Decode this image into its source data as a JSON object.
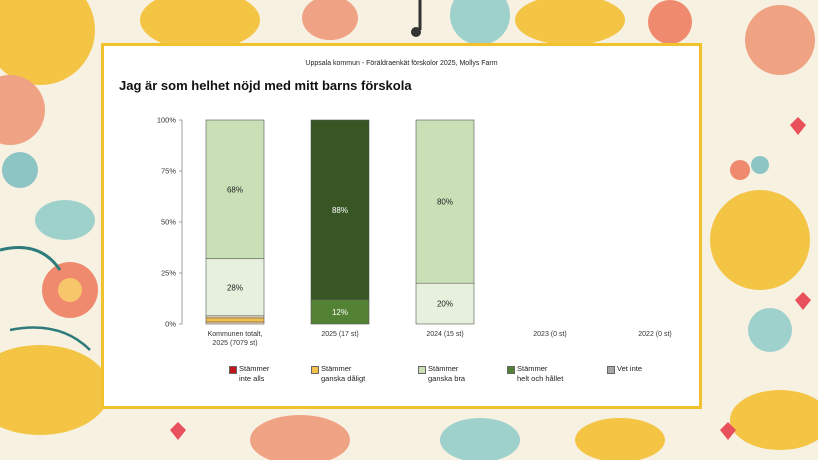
{
  "page": {
    "subtitle": "Uppsala kommun - Föräldraenkät förskolor 2025, Mollys Farm",
    "title": "Jag är som helhet nöjd med mitt barns förskola"
  },
  "colors": {
    "frame": "#f2c12e",
    "Stämmer inte alls": "#c0161b",
    "Stämmer ganska dåligt": "#f5c14a",
    "Stämmer ganska bra": "#c9e0b7",
    "Stämmer helt och hållet": "#375623",
    "Vet inte": "#a6a6a6"
  },
  "chart_data": {
    "type": "bar",
    "stacked": true,
    "ylim": [
      0,
      100
    ],
    "yticks": [
      "0%",
      "25%",
      "50%",
      "75%",
      "100%"
    ],
    "categories": [
      "Kommunen totalt,\n2025 (7079 st)",
      "2025 (17 st)",
      "2024 (15 st)",
      "2023 (0 st)",
      "2022 (0 st)"
    ],
    "segments": [
      [
        {
          "value": 1,
          "color": "#f8dcb0",
          "label": ""
        },
        {
          "value": 2,
          "color": "#f5c14a",
          "label": ""
        },
        {
          "value": 1,
          "color": "#fbe7c3",
          "label": ""
        },
        {
          "value": 28,
          "color": "#e6f0dc",
          "label": "28%"
        },
        {
          "value": 68,
          "color": "#c9e0b7",
          "label": "68%"
        }
      ],
      [
        {
          "value": 12,
          "color": "#548235",
          "label": "12%"
        },
        {
          "value": 88,
          "color": "#375623",
          "label": "88%"
        }
      ],
      [
        {
          "value": 20,
          "color": "#e6f0dc",
          "label": "20%"
        },
        {
          "value": 80,
          "color": "#c9e0b7",
          "label": "80%"
        }
      ],
      [],
      []
    ],
    "legend": [
      {
        "label": "Stämmer\ninte alls",
        "color": "#c0161b"
      },
      {
        "label": "Stämmer\nganska dåligt",
        "color": "#f5c14a"
      },
      {
        "label": "Stämmer\nganska bra",
        "color": "#c9e0b7"
      },
      {
        "label": "Stämmer\nhelt och hållet",
        "color": "#548235"
      },
      {
        "label": "Vet inte",
        "color": "#a6a6a6"
      }
    ]
  }
}
